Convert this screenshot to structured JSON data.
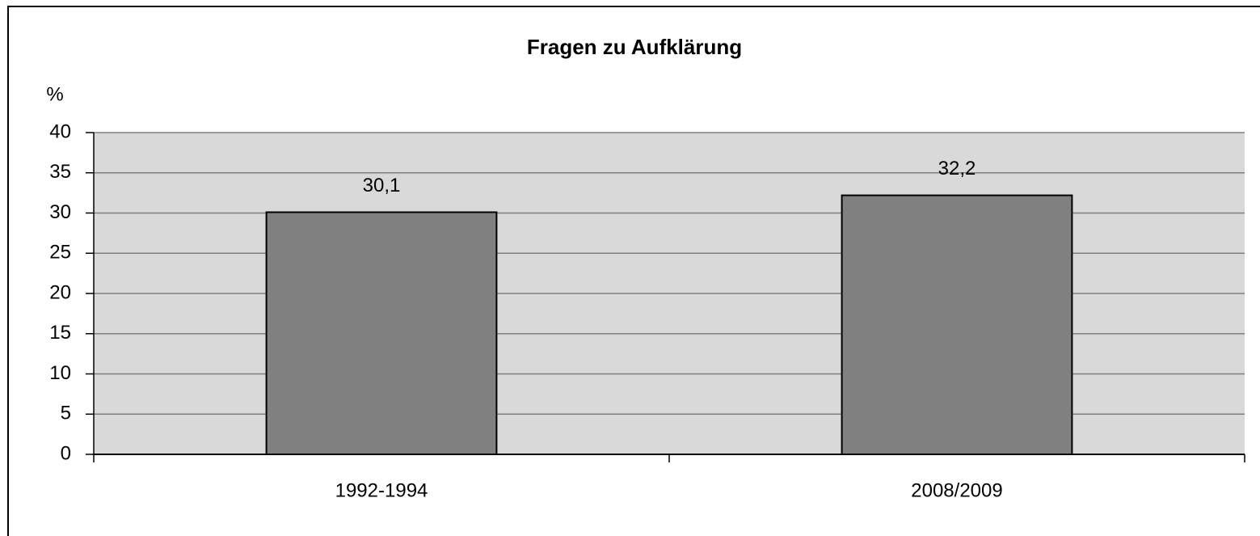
{
  "chart_data": {
    "type": "bar",
    "title": "Fragen zu Aufklärung",
    "ylabel": "%",
    "categories": [
      "1992-1994",
      "2008/2009"
    ],
    "values": [
      30.1,
      32.2
    ],
    "value_labels": [
      "30,1",
      "32,2"
    ],
    "color": "#808080",
    "plot_background": "#d9d9d9",
    "ylim": [
      0,
      40
    ],
    "yticks": [
      0,
      5,
      10,
      15,
      20,
      25,
      30,
      35,
      40
    ],
    "grid": true
  }
}
